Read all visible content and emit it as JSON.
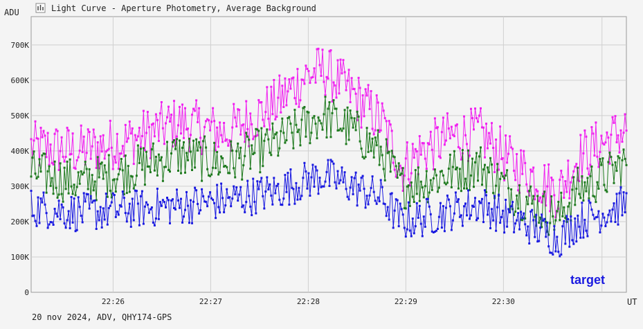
{
  "window": {
    "title": "Light Curve - Aperture Photometry, Average Background",
    "icon": "chart-icon"
  },
  "footer": {
    "info": "20 nov 2024, ADV, QHY174-GPS"
  },
  "chart_data": {
    "type": "line",
    "title": "Light Curve - Aperture Photometry, Average Background",
    "xlabel": "UT",
    "ylabel": "ADU",
    "ylim": [
      0,
      780000
    ],
    "xlim_minutes": [
      25.0,
      31.1
    ],
    "yticks": [
      {
        "value": 0,
        "label": "0"
      },
      {
        "value": 100000,
        "label": "100K"
      },
      {
        "value": 200000,
        "label": "200K"
      },
      {
        "value": 300000,
        "label": "300K"
      },
      {
        "value": 400000,
        "label": "400K"
      },
      {
        "value": 500000,
        "label": "500K"
      },
      {
        "value": 600000,
        "label": "600K"
      },
      {
        "value": 700000,
        "label": "700K"
      }
    ],
    "xticks": [
      {
        "value": 25.84,
        "label": "22:26"
      },
      {
        "value": 26.84,
        "label": "22:27"
      },
      {
        "value": 27.84,
        "label": "22:28"
      },
      {
        "value": 28.84,
        "label": "22:29"
      },
      {
        "value": 29.84,
        "label": "22:30"
      }
    ],
    "extra_vlines": [
      30.85
    ],
    "grid": true,
    "legend": [
      {
        "name": "target",
        "color": "#1a1ae0",
        "placement": "bottom-right"
      }
    ],
    "series": [
      {
        "name": "target",
        "color": "#1a1ae0",
        "x": [
          25.0,
          25.5,
          26.0,
          26.5,
          27.0,
          27.5,
          27.8,
          28.0,
          28.3,
          28.6,
          28.8,
          29.0,
          29.3,
          29.6,
          29.9,
          30.2,
          30.4,
          30.6,
          30.9,
          31.1
        ],
        "values": [
          240000,
          225000,
          235000,
          245000,
          260000,
          285000,
          315000,
          330000,
          300000,
          265000,
          200000,
          210000,
          230000,
          250000,
          210000,
          180000,
          150000,
          200000,
          230000,
          250000
        ]
      },
      {
        "name": "",
        "color": "#1f7a1f",
        "x": [
          25.0,
          25.5,
          26.0,
          26.5,
          27.0,
          27.5,
          27.8,
          28.0,
          28.3,
          28.6,
          28.8,
          29.0,
          29.3,
          29.6,
          29.9,
          30.2,
          30.4,
          30.6,
          30.9,
          31.1
        ],
        "values": [
          340000,
          310000,
          345000,
          390000,
          365000,
          420000,
          470000,
          500000,
          460000,
          390000,
          300000,
          310000,
          340000,
          360000,
          290000,
          240000,
          210000,
          290000,
          330000,
          370000
        ]
      },
      {
        "name": "",
        "color": "#f020f0",
        "x": [
          25.0,
          25.5,
          26.0,
          26.5,
          27.0,
          27.5,
          27.8,
          28.0,
          28.3,
          28.6,
          28.8,
          29.0,
          29.3,
          29.6,
          29.9,
          30.2,
          30.4,
          30.6,
          30.9,
          31.1
        ],
        "values": [
          410000,
          400000,
          430000,
          480000,
          450000,
          530000,
          610000,
          630000,
          560000,
          480000,
          350000,
          400000,
          440000,
          450000,
          370000,
          320000,
          280000,
          380000,
          430000,
          460000
        ]
      }
    ]
  }
}
